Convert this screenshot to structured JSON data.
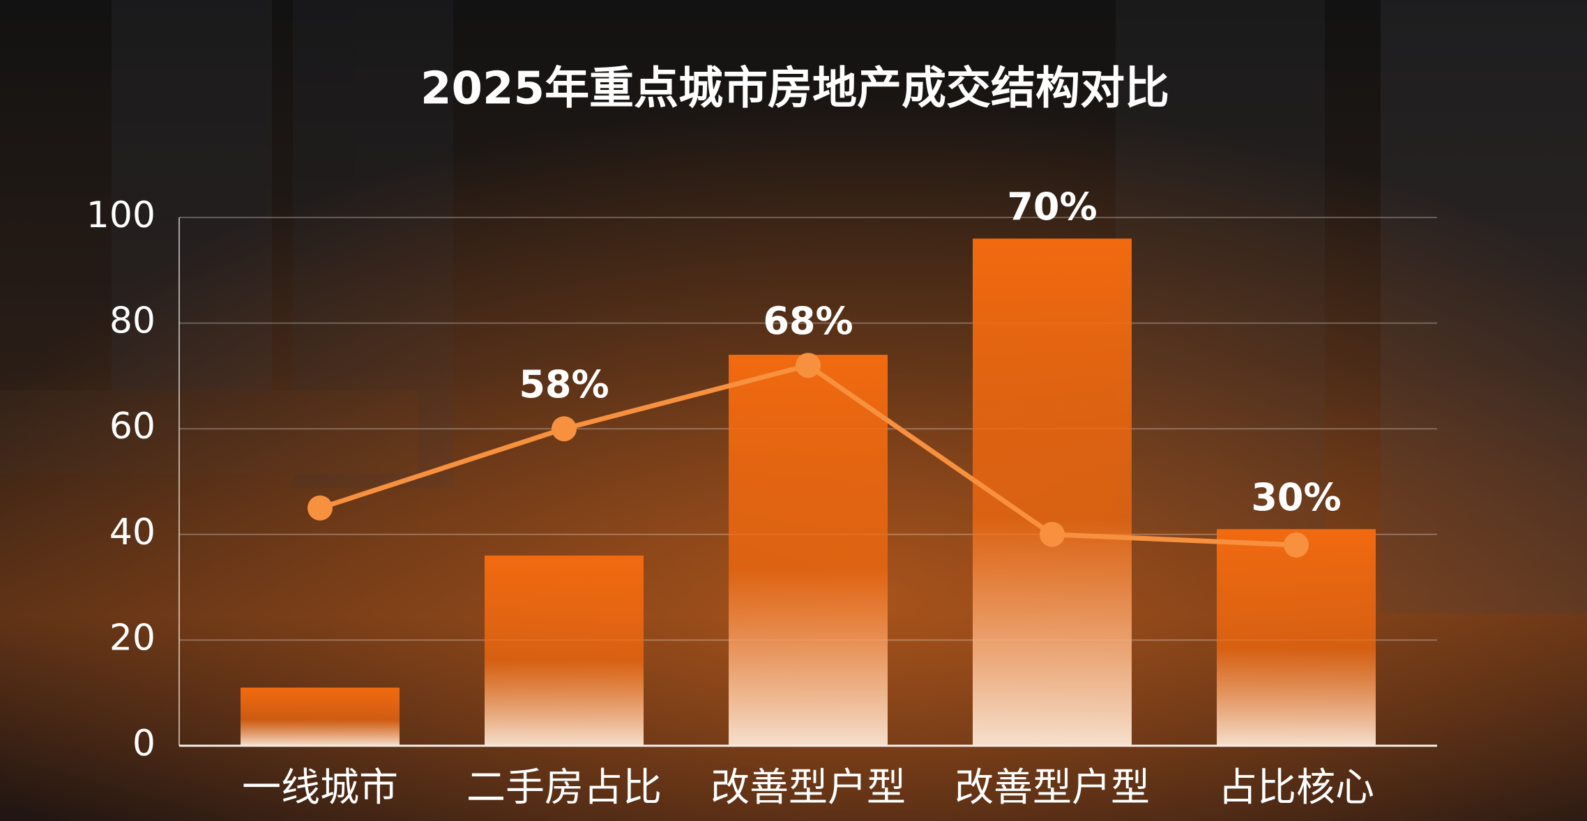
{
  "chart_data": {
    "type": "bar",
    "title": "2025年重点城市房地产成交结构对比",
    "categories": [
      "一线城市",
      "二手房占比",
      "改善型户型",
      "改善型户型",
      "占比核心"
    ],
    "series": [
      {
        "type": "bar",
        "color": "#f26a10",
        "values": [
          11,
          36,
          74,
          96,
          41
        ]
      },
      {
        "type": "line",
        "color": "#f7913f",
        "values": [
          45,
          60,
          72,
          40,
          38
        ]
      }
    ],
    "annotations": [
      null,
      "58%",
      "68%",
      "70%",
      "30%"
    ],
    "ylim": [
      0,
      100
    ],
    "yticks": [
      0,
      20,
      40,
      60,
      80,
      100
    ],
    "grid": true
  }
}
